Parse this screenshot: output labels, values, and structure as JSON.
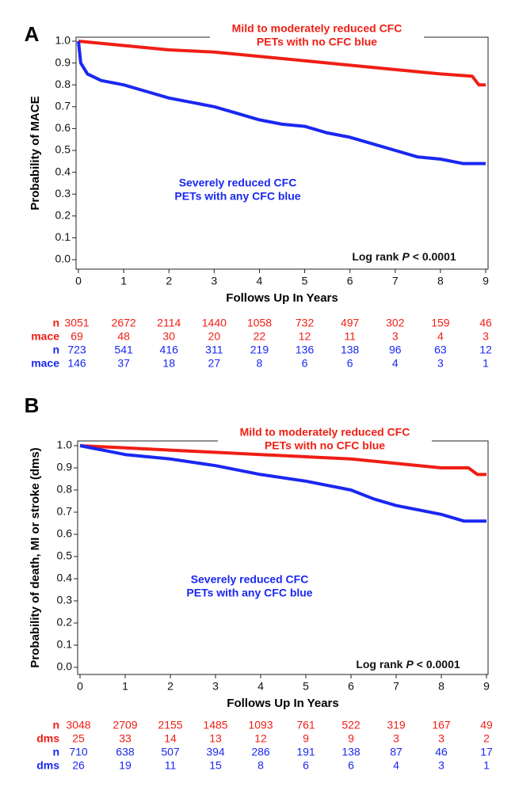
{
  "chart_data": [
    {
      "type": "line",
      "panel_label": "A",
      "x_label": "Follows Up In Years",
      "y_label": "Probability of MACE",
      "annotation": [
        "Log rank",
        "P",
        "< 0.0001"
      ],
      "xlim": [
        0,
        9
      ],
      "xticks": [
        0,
        1,
        2,
        3,
        4,
        5,
        6,
        7,
        8,
        9
      ],
      "ylim": [
        0,
        1
      ],
      "yticks": [
        {
          "value": 0,
          "label": "0.0"
        },
        {
          "value": 0.1,
          "label": "0.1"
        },
        {
          "value": 0.2,
          "label": "0.2"
        },
        {
          "value": 0.3,
          "label": "0.3"
        },
        {
          "value": 0.4,
          "label": "0.4"
        },
        {
          "value": 0.5,
          "label": "0.5"
        },
        {
          "value": 0.6,
          "label": "0.6"
        },
        {
          "value": 0.7,
          "label": "0.7"
        },
        {
          "value": 0.8,
          "label": "0.8"
        },
        {
          "value": 0.9,
          "label": "0.9"
        },
        {
          "value": 1,
          "label": "1.0"
        }
      ],
      "series": [
        {
          "name": [
            "Mild to moderately reduced CFC",
            "PETs with no CFC blue"
          ],
          "color": "#f01e14",
          "x": [
            0,
            0.5,
            1.5,
            2,
            3,
            4,
            5,
            6,
            7,
            8,
            8.7,
            8.85,
            9
          ],
          "values": [
            1.0,
            0.99,
            0.97,
            0.96,
            0.95,
            0.93,
            0.91,
            0.89,
            0.87,
            0.85,
            0.84,
            0.8,
            0.8
          ]
        },
        {
          "name": [
            "Severely reduced CFC",
            "PETs with any CFC blue"
          ],
          "color": "#1a28f0",
          "x": [
            0,
            0.05,
            0.2,
            0.5,
            1,
            1.5,
            2,
            2.5,
            3,
            3.5,
            4,
            4.5,
            5,
            5.5,
            6,
            6.5,
            7,
            7.5,
            8,
            8.5,
            9
          ],
          "values": [
            1.0,
            0.9,
            0.85,
            0.82,
            0.8,
            0.77,
            0.74,
            0.72,
            0.7,
            0.67,
            0.64,
            0.62,
            0.61,
            0.58,
            0.56,
            0.53,
            0.5,
            0.47,
            0.46,
            0.44,
            0.44
          ]
        }
      ],
      "risk_table": [
        {
          "label": "n",
          "color": "#f01e14",
          "values": [
            3051,
            2672,
            2114,
            1440,
            1058,
            732,
            497,
            302,
            159,
            46
          ]
        },
        {
          "label": "mace",
          "color": "#f01e14",
          "values": [
            69,
            48,
            30,
            20,
            22,
            12,
            11,
            3,
            4,
            3
          ]
        },
        {
          "label": "n",
          "color": "#1a28f0",
          "values": [
            723,
            541,
            416,
            311,
            219,
            136,
            138,
            96,
            63,
            12
          ]
        },
        {
          "label": "mace",
          "color": "#1a28f0",
          "values": [
            146,
            37,
            18,
            27,
            8,
            6,
            6,
            4,
            3,
            1
          ]
        }
      ]
    },
    {
      "type": "line",
      "panel_label": "B",
      "x_label": "Follows Up In Years",
      "y_label": "Probability of death, MI or stroke (dms)",
      "annotation": [
        "Log rank",
        "P",
        "< 0.0001"
      ],
      "xlim": [
        0,
        9
      ],
      "xticks": [
        0,
        1,
        2,
        3,
        4,
        5,
        6,
        7,
        8,
        9
      ],
      "ylim": [
        0,
        1
      ],
      "yticks": [
        {
          "value": 0,
          "label": "0.0"
        },
        {
          "value": 0.1,
          "label": "0.1"
        },
        {
          "value": 0.2,
          "label": "0.2"
        },
        {
          "value": 0.3,
          "label": "0.3"
        },
        {
          "value": 0.4,
          "label": "0.4"
        },
        {
          "value": 0.5,
          "label": "0.5"
        },
        {
          "value": 0.6,
          "label": "0.6"
        },
        {
          "value": 0.7,
          "label": "0.7"
        },
        {
          "value": 0.8,
          "label": "0.8"
        },
        {
          "value": 0.9,
          "label": "0.9"
        },
        {
          "value": 1,
          "label": "1.0"
        }
      ],
      "series": [
        {
          "name": [
            "Mild to moderately reduced CFC",
            "PETs with no CFC blue"
          ],
          "color": "#f01e14",
          "x": [
            0,
            1,
            2,
            3,
            4,
            5,
            6,
            7,
            8,
            8.6,
            8.8,
            9
          ],
          "values": [
            1.0,
            0.99,
            0.98,
            0.97,
            0.96,
            0.95,
            0.94,
            0.92,
            0.9,
            0.9,
            0.87,
            0.87
          ]
        },
        {
          "name": [
            "Severely reduced CFC",
            "PETs with any CFC blue"
          ],
          "color": "#1a28f0",
          "x": [
            0,
            0.5,
            1,
            2,
            3,
            4,
            5,
            6,
            6.5,
            7,
            7.5,
            8,
            8.5,
            9
          ],
          "values": [
            1.0,
            0.98,
            0.96,
            0.94,
            0.91,
            0.87,
            0.84,
            0.8,
            0.76,
            0.73,
            0.71,
            0.69,
            0.66,
            0.66
          ]
        }
      ],
      "risk_table": [
        {
          "label": "n",
          "color": "#f01e14",
          "values": [
            3048,
            2709,
            2155,
            1485,
            1093,
            761,
            522,
            319,
            167,
            49
          ]
        },
        {
          "label": "dms",
          "color": "#f01e14",
          "values": [
            25,
            33,
            14,
            13,
            12,
            9,
            9,
            3,
            3,
            2
          ]
        },
        {
          "label": "n",
          "color": "#1a28f0",
          "values": [
            710,
            638,
            507,
            394,
            286,
            191,
            138,
            87,
            46,
            17
          ]
        },
        {
          "label": "dms",
          "color": "#1a28f0",
          "values": [
            26,
            19,
            11,
            15,
            8,
            6,
            6,
            4,
            3,
            1
          ]
        }
      ]
    }
  ]
}
